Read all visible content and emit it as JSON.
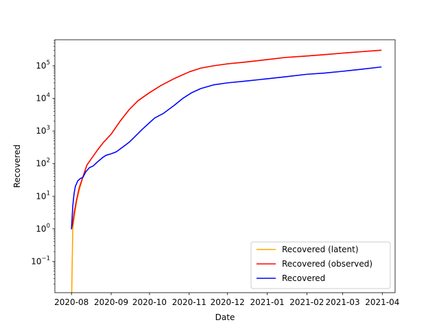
{
  "chart_data": {
    "type": "line",
    "title": "",
    "xlabel": "Date",
    "ylabel": "Recovered",
    "x_scale": "date",
    "y_scale": "log",
    "xlim": [
      "2020-07-19",
      "2021-04-11"
    ],
    "ylim": [
      0.011,
      630000
    ],
    "x_ticks": [
      "2020-08",
      "2020-09",
      "2020-10",
      "2020-11",
      "2020-12",
      "2021-01",
      "2021-02",
      "2021-03",
      "2021-04"
    ],
    "y_ticks": [
      0.1,
      1,
      10,
      100,
      1000,
      10000,
      100000
    ],
    "y_tick_labels": [
      {
        "base": "10",
        "exp": "−1"
      },
      {
        "base": "10",
        "exp": "0"
      },
      {
        "base": "10",
        "exp": "1"
      },
      {
        "base": "10",
        "exp": "2"
      },
      {
        "base": "10",
        "exp": "3"
      },
      {
        "base": "10",
        "exp": "4"
      },
      {
        "base": "10",
        "exp": "5"
      }
    ],
    "grid": false,
    "legend_position": "lower-right",
    "series": [
      {
        "name": "Recovered (latent)",
        "color": "#ffa500",
        "points": [
          [
            "2020-08-01",
            0.005
          ],
          [
            "2020-08-02",
            1
          ],
          [
            "2020-08-03",
            2
          ],
          [
            "2020-08-05",
            7
          ],
          [
            "2020-08-07",
            15
          ],
          [
            "2020-08-10",
            40
          ],
          [
            "2020-08-13",
            90
          ],
          [
            "2020-08-17",
            150
          ],
          [
            "2020-08-21",
            250
          ],
          [
            "2020-08-26",
            450
          ],
          [
            "2020-09-01",
            800
          ],
          [
            "2020-09-08",
            2000
          ],
          [
            "2020-09-15",
            4500
          ],
          [
            "2020-09-22",
            8500
          ],
          [
            "2020-10-01",
            15000
          ],
          [
            "2020-10-10",
            25000
          ],
          [
            "2020-10-20",
            40000
          ],
          [
            "2020-11-01",
            65000
          ],
          [
            "2020-11-10",
            85000
          ],
          [
            "2020-11-20",
            100000
          ],
          [
            "2020-12-01",
            115000
          ],
          [
            "2020-12-15",
            130000
          ],
          [
            "2021-01-01",
            155000
          ],
          [
            "2021-01-15",
            180000
          ],
          [
            "2021-02-01",
            200000
          ],
          [
            "2021-02-15",
            220000
          ],
          [
            "2021-03-01",
            245000
          ],
          [
            "2021-03-15",
            270000
          ],
          [
            "2021-03-31",
            300000
          ]
        ]
      },
      {
        "name": "Recovered (observed)",
        "color": "#ff0000",
        "points": [
          [
            "2020-08-01",
            1
          ],
          [
            "2020-08-02",
            1.5
          ],
          [
            "2020-08-03",
            3
          ],
          [
            "2020-08-05",
            8
          ],
          [
            "2020-08-07",
            18
          ],
          [
            "2020-08-10",
            40
          ],
          [
            "2020-08-13",
            90
          ],
          [
            "2020-08-17",
            150
          ],
          [
            "2020-08-21",
            250
          ],
          [
            "2020-08-26",
            450
          ],
          [
            "2020-09-01",
            800
          ],
          [
            "2020-09-08",
            2000
          ],
          [
            "2020-09-15",
            4500
          ],
          [
            "2020-09-22",
            8500
          ],
          [
            "2020-10-01",
            15000
          ],
          [
            "2020-10-10",
            25000
          ],
          [
            "2020-10-20",
            40000
          ],
          [
            "2020-11-01",
            65000
          ],
          [
            "2020-11-10",
            85000
          ],
          [
            "2020-11-20",
            100000
          ],
          [
            "2020-12-01",
            115000
          ],
          [
            "2020-12-15",
            130000
          ],
          [
            "2021-01-01",
            155000
          ],
          [
            "2021-01-15",
            180000
          ],
          [
            "2021-02-01",
            200000
          ],
          [
            "2021-02-15",
            220000
          ],
          [
            "2021-03-01",
            245000
          ],
          [
            "2021-03-15",
            270000
          ],
          [
            "2021-03-31",
            300000
          ]
        ]
      },
      {
        "name": "Recovered",
        "color": "#0000ff",
        "points": [
          [
            "2020-08-01",
            1
          ],
          [
            "2020-08-02",
            5
          ],
          [
            "2020-08-03",
            12
          ],
          [
            "2020-08-04",
            20
          ],
          [
            "2020-08-06",
            30
          ],
          [
            "2020-08-08",
            35
          ],
          [
            "2020-08-10",
            38
          ],
          [
            "2020-08-12",
            55
          ],
          [
            "2020-08-15",
            75
          ],
          [
            "2020-08-18",
            85
          ],
          [
            "2020-08-21",
            110
          ],
          [
            "2020-08-25",
            150
          ],
          [
            "2020-08-28",
            180
          ],
          [
            "2020-09-01",
            200
          ],
          [
            "2020-09-05",
            230
          ],
          [
            "2020-09-10",
            320
          ],
          [
            "2020-09-15",
            450
          ],
          [
            "2020-09-20",
            700
          ],
          [
            "2020-09-25",
            1100
          ],
          [
            "2020-10-01",
            1800
          ],
          [
            "2020-10-05",
            2500
          ],
          [
            "2020-10-12",
            3500
          ],
          [
            "2020-10-20",
            6000
          ],
          [
            "2020-10-27",
            10000
          ],
          [
            "2020-11-03",
            15000
          ],
          [
            "2020-11-10",
            20000
          ],
          [
            "2020-11-20",
            26000
          ],
          [
            "2020-12-01",
            30000
          ],
          [
            "2020-12-15",
            34000
          ],
          [
            "2021-01-01",
            40000
          ],
          [
            "2021-01-15",
            46000
          ],
          [
            "2021-02-01",
            55000
          ],
          [
            "2021-02-15",
            60000
          ],
          [
            "2021-03-01",
            68000
          ],
          [
            "2021-03-15",
            78000
          ],
          [
            "2021-03-31",
            92000
          ]
        ]
      }
    ]
  }
}
